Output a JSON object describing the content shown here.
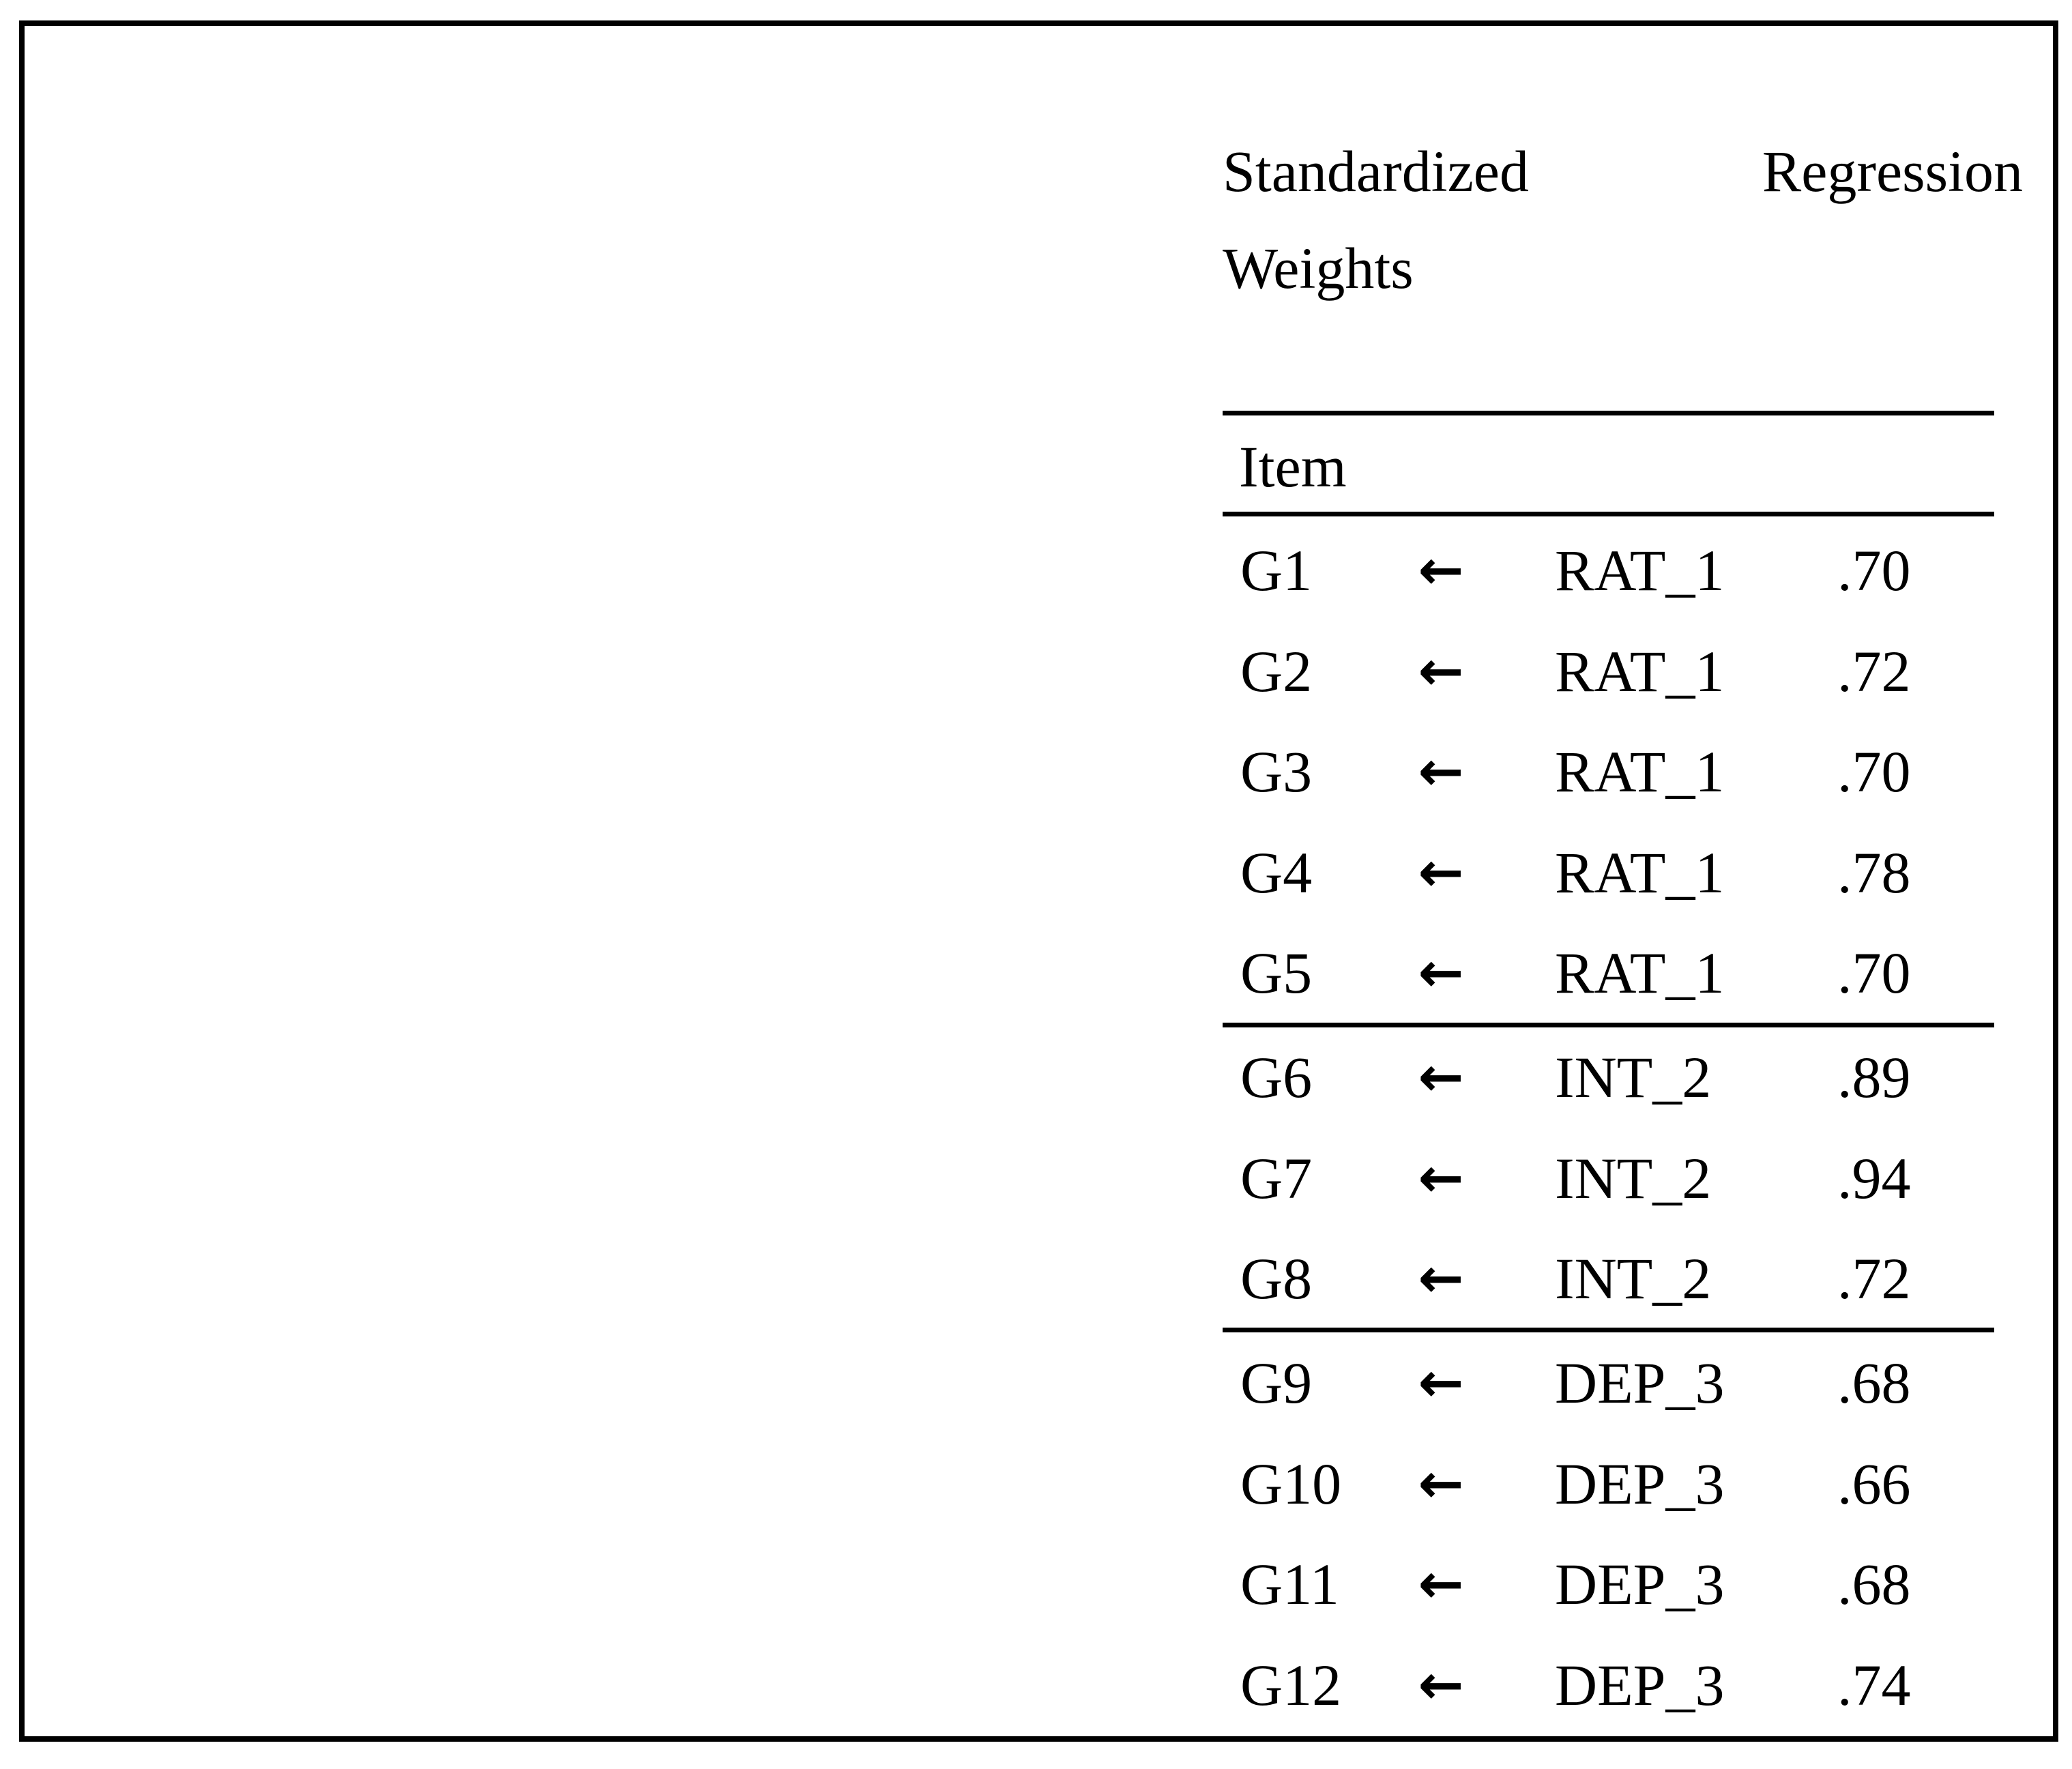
{
  "page": {
    "background_color": "#ffffff",
    "border_color": "#000000",
    "text_color": "#000000"
  },
  "table": {
    "title": {
      "full": "Standardized Regression Weights",
      "line1_left": "Standardized",
      "line1_right": "Regression",
      "line2": "Weights"
    },
    "header": {
      "item_label": "Item"
    },
    "arrow_icon": "←",
    "groups": [
      {
        "factor": "RAT_1",
        "rows": [
          {
            "item": "G1",
            "factor": "RAT_1",
            "value": ".70"
          },
          {
            "item": "G2",
            "factor": "RAT_1",
            "value": ".72"
          },
          {
            "item": "G3",
            "factor": "RAT_1",
            "value": ".70"
          },
          {
            "item": "G4",
            "factor": "RAT_1",
            "value": ".78"
          },
          {
            "item": "G5",
            "factor": "RAT_1",
            "value": ".70"
          }
        ]
      },
      {
        "factor": "INT_2",
        "rows": [
          {
            "item": "G6",
            "factor": "INT_2",
            "value": ".89"
          },
          {
            "item": "G7",
            "factor": "INT_2",
            "value": ".94"
          },
          {
            "item": "G8",
            "factor": "INT_2",
            "value": ".72"
          }
        ]
      },
      {
        "factor": "DEP_3",
        "rows": [
          {
            "item": "G9",
            "factor": "DEP_3",
            "value": ".68"
          },
          {
            "item": "G10",
            "factor": "DEP_3",
            "value": ".66"
          },
          {
            "item": "G11",
            "factor": "DEP_3",
            "value": ".68"
          },
          {
            "item": "G12",
            "factor": "DEP_3",
            "value": ".74"
          }
        ]
      }
    ]
  }
}
